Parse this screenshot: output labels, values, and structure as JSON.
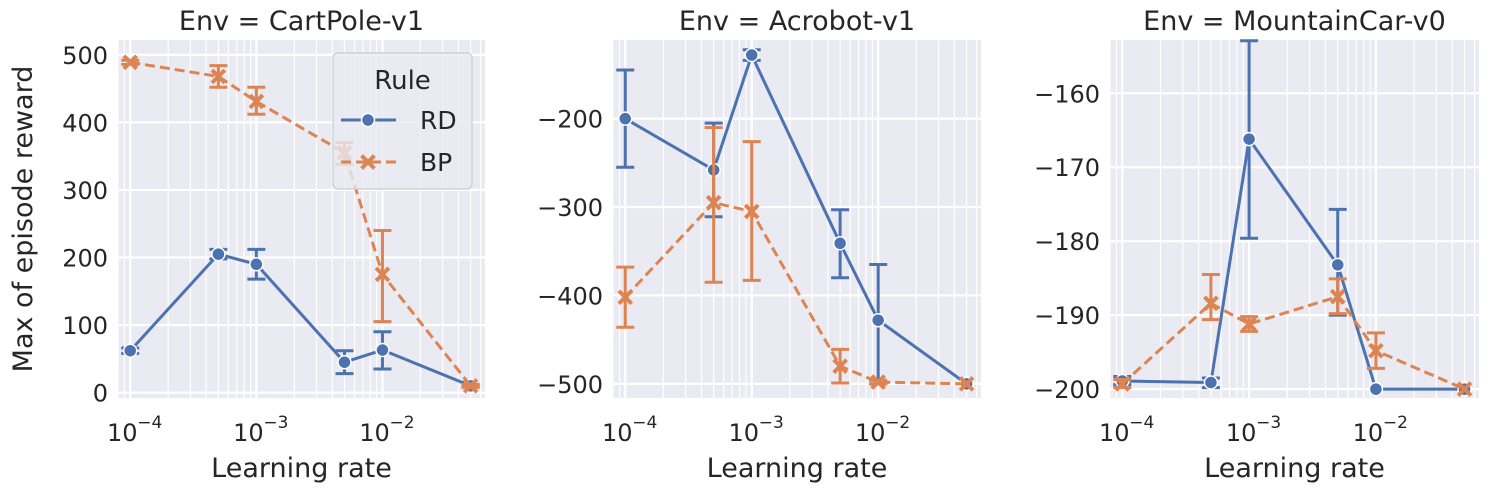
{
  "shared": {
    "xlabel": "Learning rate",
    "ylabel": "Max of episode reward",
    "x_ticks": [
      {
        "value": 0.0001,
        "base": "10",
        "exp": "−4"
      },
      {
        "value": 0.001,
        "base": "10",
        "exp": "−3"
      },
      {
        "value": 0.01,
        "base": "10",
        "exp": "−2"
      }
    ],
    "xlim": [
      8e-05,
      0.065
    ],
    "xscale": "log",
    "grid": true,
    "colors": {
      "RD": "#4c72b0",
      "BP": "#dd8452",
      "background": "#eaeaf2",
      "grid": "#ffffff"
    }
  },
  "legend": {
    "title": "Rule",
    "placement": "upper-right (first panel)",
    "entries": [
      "RD",
      "BP"
    ]
  },
  "chart_data": [
    {
      "type": "line",
      "title": "Env = CartPole-v1",
      "xlabel": "Learning rate",
      "ylabel": "Max of episode reward",
      "ylim": [
        -8,
        522
      ],
      "yticks": [
        0,
        100,
        200,
        300,
        400,
        500
      ],
      "ytick_labels": [
        "0",
        "100",
        "200",
        "300",
        "400",
        "500"
      ],
      "series": [
        {
          "name": "RD",
          "style": "solid",
          "marker": "circle",
          "x": [
            0.0001,
            0.0005,
            0.001,
            0.005,
            0.01,
            0.05
          ],
          "y": [
            62,
            205,
            190,
            45,
            63,
            10
          ],
          "err_low": [
            58,
            198,
            168,
            28,
            35,
            8
          ],
          "err_high": [
            66,
            212,
            212,
            62,
            90,
            12
          ]
        },
        {
          "name": "BP",
          "style": "dashed",
          "marker": "x",
          "x": [
            0.0001,
            0.0005,
            0.001,
            0.005,
            0.01,
            0.05
          ],
          "y": [
            489,
            468,
            431,
            355,
            175,
            10
          ],
          "err_low": [
            486,
            452,
            412,
            338,
            105,
            8
          ],
          "err_high": [
            492,
            484,
            452,
            370,
            240,
            12
          ]
        }
      ]
    },
    {
      "type": "line",
      "title": "Env = Acrobot-v1",
      "xlabel": "Learning rate",
      "ylabel": "",
      "ylim": [
        -516,
        -111
      ],
      "yticks": [
        -200,
        -300,
        -400,
        -500
      ],
      "ytick_labels": [
        "−200",
        "−300",
        "−400",
        "−500"
      ],
      "series": [
        {
          "name": "RD",
          "style": "solid",
          "marker": "circle",
          "x": [
            0.0001,
            0.0005,
            0.001,
            0.005,
            0.01,
            0.05
          ],
          "y": [
            -200,
            -258,
            -128,
            -341,
            -428,
            -500
          ],
          "err_low": [
            -255,
            -311,
            -134,
            -380,
            -500,
            -500
          ],
          "err_high": [
            -145,
            -205,
            -122,
            -303,
            -365,
            -500
          ]
        },
        {
          "name": "BP",
          "style": "dashed",
          "marker": "x",
          "x": [
            0.0001,
            0.0005,
            0.001,
            0.005,
            0.01,
            0.05
          ],
          "y": [
            -402,
            -295,
            -305,
            -480,
            -498,
            -500
          ],
          "err_low": [
            -436,
            -385,
            -383,
            -499,
            -500,
            -500
          ],
          "err_high": [
            -368,
            -210,
            -226,
            -461,
            -496,
            -500
          ]
        }
      ]
    },
    {
      "type": "line",
      "title": "Env = MountainCar-v0",
      "xlabel": "Learning rate",
      "ylabel": "",
      "ylim": [
        -201.2,
        -152.8
      ],
      "yticks": [
        -160,
        -170,
        -180,
        -190,
        -200
      ],
      "ytick_labels": [
        "−160",
        "−170",
        "−180",
        "−190",
        "−200"
      ],
      "series": [
        {
          "name": "RD",
          "style": "solid",
          "marker": "circle",
          "x": [
            0.0001,
            0.0005,
            0.001,
            0.005,
            0.01,
            0.05
          ],
          "y": [
            -198.9,
            -199.1,
            -166.2,
            -183.2,
            -200,
            -200
          ],
          "err_low": [
            -199.4,
            -199.8,
            -179.6,
            -190.0,
            -200,
            -200
          ],
          "err_high": [
            -198.3,
            -198.5,
            -152.9,
            -175.7,
            -200,
            -200
          ]
        },
        {
          "name": "BP",
          "style": "dashed",
          "marker": "x",
          "x": [
            0.0001,
            0.0005,
            0.001,
            0.005,
            0.01,
            0.05
          ],
          "y": [
            -199.3,
            -188.4,
            -191.2,
            -187.5,
            -194.8,
            -200
          ],
          "err_low": [
            -199.8,
            -190.6,
            -192.2,
            -189.8,
            -197.2,
            -200
          ],
          "err_high": [
            -198.7,
            -184.5,
            -190.2,
            -185.1,
            -192.4,
            -200
          ]
        }
      ]
    }
  ]
}
